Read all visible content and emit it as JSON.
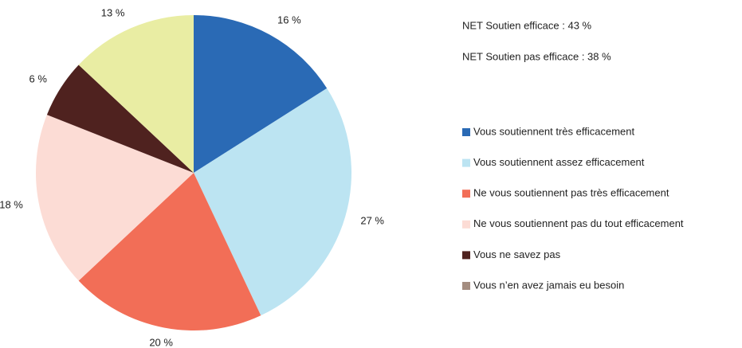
{
  "chart_data": {
    "type": "pie",
    "annotations": [
      "NET Soutien efficace : 43 %",
      "NET Soutien pas efficace : 38 %"
    ],
    "categories": [
      "Vous soutiennent très efficacement",
      "Vous soutiennent assez efficacement",
      "Ne vous soutiennent pas très efficacement",
      "Ne vous soutiennent pas du tout efficacement",
      "Vous ne savez pas",
      "Vous n’en avez jamais eu besoin"
    ],
    "values": [
      16,
      27,
      20,
      18,
      6,
      13
    ],
    "value_labels": [
      "16 %",
      "27 %",
      "20 %",
      "18 %",
      "6 %",
      "13 %"
    ],
    "colors": [
      "#2a6ab5",
      "#bce4f2",
      "#f26e57",
      "#fcdcd5",
      "#4f221f",
      "#e9eda3"
    ],
    "legend_colors": [
      "#2a6ab5",
      "#bce4f2",
      "#f26e57",
      "#fcdcd5",
      "#4f221f",
      "#a48d80"
    ]
  }
}
